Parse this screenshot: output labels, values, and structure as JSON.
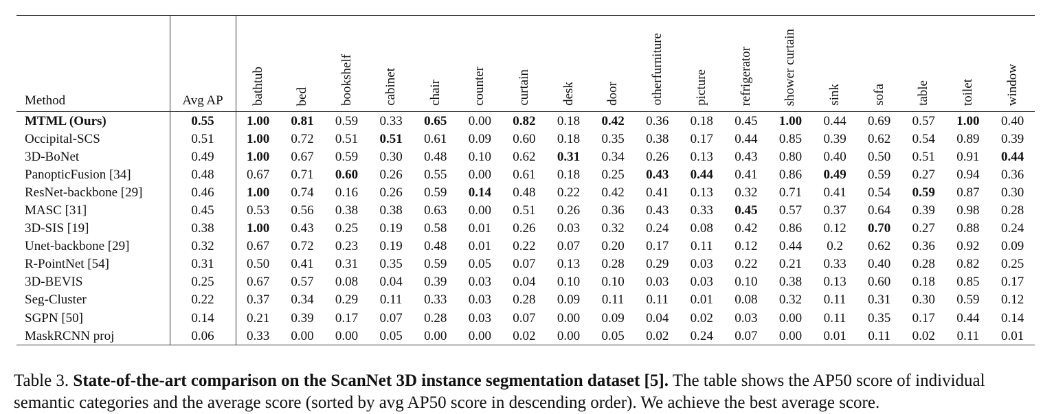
{
  "table": {
    "method_header": "Method",
    "avg_header": "Avg AP",
    "categories": [
      "bathtub",
      "bed",
      "bookshelf",
      "cabinet",
      "chair",
      "counter",
      "curtain",
      "desk",
      "door",
      "otherfurniture",
      "picture",
      "refrigerator",
      "shower curtain",
      "sink",
      "sofa",
      "table",
      "toilet",
      "window"
    ],
    "rows": [
      {
        "method": "MTML (Ours)",
        "method_bold": true,
        "avg": "0.55",
        "avg_bold": true,
        "values": [
          "1.00",
          "0.81",
          "0.59",
          "0.33",
          "0.65",
          "0.00",
          "0.82",
          "0.18",
          "0.42",
          "0.36",
          "0.18",
          "0.45",
          "1.00",
          "0.44",
          "0.69",
          "0.57",
          "1.00",
          "0.40"
        ],
        "bold": [
          0,
          1,
          4,
          6,
          8,
          12,
          16
        ]
      },
      {
        "method": "Occipital-SCS",
        "avg": "0.51",
        "values": [
          "1.00",
          "0.72",
          "0.51",
          "0.51",
          "0.61",
          "0.09",
          "0.60",
          "0.18",
          "0.35",
          "0.38",
          "0.17",
          "0.44",
          "0.85",
          "0.39",
          "0.62",
          "0.54",
          "0.89",
          "0.39"
        ],
        "bold": [
          0,
          3
        ]
      },
      {
        "method": "3D-BoNet",
        "avg": "0.49",
        "values": [
          "1.00",
          "0.67",
          "0.59",
          "0.30",
          "0.48",
          "0.10",
          "0.62",
          "0.31",
          "0.34",
          "0.26",
          "0.13",
          "0.43",
          "0.80",
          "0.40",
          "0.50",
          "0.51",
          "0.91",
          "0.44"
        ],
        "bold": [
          0,
          7,
          17
        ]
      },
      {
        "method": "PanopticFusion [34]",
        "avg": "0.48",
        "values": [
          "0.67",
          "0.71",
          "0.60",
          "0.26",
          "0.55",
          "0.00",
          "0.61",
          "0.18",
          "0.25",
          "0.43",
          "0.44",
          "0.41",
          "0.86",
          "0.49",
          "0.59",
          "0.27",
          "0.94",
          "0.36"
        ],
        "bold": [
          2,
          9,
          10,
          13
        ]
      },
      {
        "method": "ResNet-backbone [29]",
        "avg": "0.46",
        "values": [
          "1.00",
          "0.74",
          "0.16",
          "0.26",
          "0.59",
          "0.14",
          "0.48",
          "0.22",
          "0.42",
          "0.41",
          "0.13",
          "0.32",
          "0.71",
          "0.41",
          "0.54",
          "0.59",
          "0.87",
          "0.30"
        ],
        "bold": [
          0,
          5,
          15
        ]
      },
      {
        "method": "MASC [31]",
        "avg": "0.45",
        "values": [
          "0.53",
          "0.56",
          "0.38",
          "0.38",
          "0.63",
          "0.00",
          "0.51",
          "0.26",
          "0.36",
          "0.43",
          "0.33",
          "0.45",
          "0.57",
          "0.37",
          "0.64",
          "0.39",
          "0.98",
          "0.28"
        ],
        "bold": [
          11
        ]
      },
      {
        "method": "3D-SIS [19]",
        "avg": "0.38",
        "values": [
          "1.00",
          "0.43",
          "0.25",
          "0.19",
          "0.58",
          "0.01",
          "0.26",
          "0.03",
          "0.32",
          "0.24",
          "0.08",
          "0.42",
          "0.86",
          "0.12",
          "0.70",
          "0.27",
          "0.88",
          "0.24"
        ],
        "bold": [
          0,
          14
        ]
      },
      {
        "method": "Unet-backbone [29]",
        "avg": "0.32",
        "values": [
          "0.67",
          "0.72",
          "0.23",
          "0.19",
          "0.48",
          "0.01",
          "0.22",
          "0.07",
          "0.20",
          "0.17",
          "0.11",
          "0.12",
          "0.44",
          "0.2",
          "0.62",
          "0.36",
          "0.92",
          "0.09"
        ],
        "bold": []
      },
      {
        "method": "R-PointNet [54]",
        "avg": "0.31",
        "values": [
          "0.50",
          "0.41",
          "0.31",
          "0.35",
          "0.59",
          "0.05",
          "0.07",
          "0.13",
          "0.28",
          "0.29",
          "0.03",
          "0.22",
          "0.21",
          "0.33",
          "0.40",
          "0.28",
          "0.82",
          "0.25"
        ],
        "bold": []
      },
      {
        "method": "3D-BEVIS",
        "avg": "0.25",
        "values": [
          "0.67",
          "0.57",
          "0.08",
          "0.04",
          "0.39",
          "0.03",
          "0.04",
          "0.10",
          "0.10",
          "0.03",
          "0.03",
          "0.10",
          "0.38",
          "0.13",
          "0.60",
          "0.18",
          "0.85",
          "0.17"
        ],
        "bold": []
      },
      {
        "method": "Seg-Cluster",
        "avg": "0.22",
        "values": [
          "0.37",
          "0.34",
          "0.29",
          "0.11",
          "0.33",
          "0.03",
          "0.28",
          "0.09",
          "0.11",
          "0.11",
          "0.01",
          "0.08",
          "0.32",
          "0.11",
          "0.31",
          "0.30",
          "0.59",
          "0.12"
        ],
        "bold": []
      },
      {
        "method": "SGPN [50]",
        "avg": "0.14",
        "values": [
          "0.21",
          "0.39",
          "0.17",
          "0.07",
          "0.28",
          "0.03",
          "0.07",
          "0.00",
          "0.09",
          "0.04",
          "0.02",
          "0.03",
          "0.00",
          "0.11",
          "0.35",
          "0.17",
          "0.44",
          "0.14"
        ],
        "bold": []
      },
      {
        "method": "MaskRCNN proj",
        "avg": "0.06",
        "values": [
          "0.33",
          "0.00",
          "0.00",
          "0.05",
          "0.00",
          "0.00",
          "0.02",
          "0.00",
          "0.05",
          "0.02",
          "0.24",
          "0.07",
          "0.00",
          "0.01",
          "0.11",
          "0.02",
          "0.11",
          "0.01"
        ],
        "bold": []
      }
    ]
  },
  "caption": {
    "label": "Table 3.",
    "title": "State-of-the-art comparison on the ScanNet 3D instance segmentation dataset [5].",
    "body": "The table shows the AP50 score of individual semantic categories and the average score (sorted by avg AP50 score in descending order). We achieve the best average score."
  }
}
